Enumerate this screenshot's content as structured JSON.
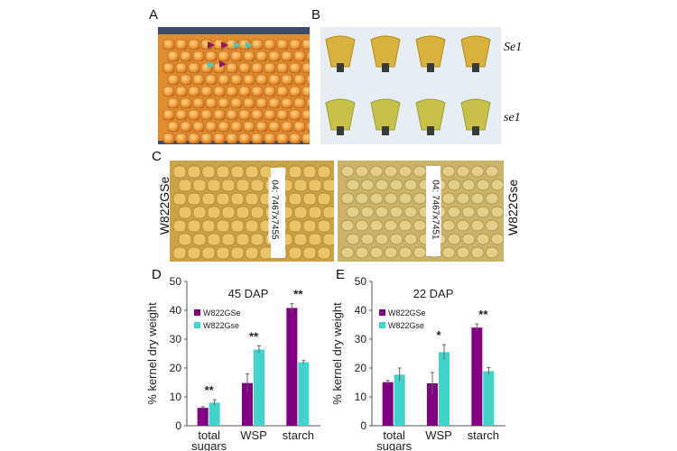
{
  "panels": {
    "A": {
      "label": "A"
    },
    "B": {
      "label": "B",
      "genotypes": [
        "Se1",
        "se1"
      ]
    },
    "C": {
      "label": "C",
      "left_genotype": "W822GSe",
      "right_genotype": "W822Gse",
      "left_tag": "04: 7467x7455",
      "right_tag": "04: 7467x7451"
    },
    "D": {
      "label": "D"
    },
    "E": {
      "label": "E"
    }
  },
  "chart_data": [
    {
      "type": "bar",
      "title": "45 DAP",
      "ylabel": "% kernel dry weight",
      "xlabel": "",
      "ylim": [
        0,
        50
      ],
      "yticks": [
        0,
        10,
        20,
        30,
        40,
        50
      ],
      "categories": [
        "total sugars",
        "WSP",
        "starch"
      ],
      "series": [
        {
          "name": "W822GSe",
          "color": "#800080",
          "values": [
            6.2,
            14.8,
            40.8
          ],
          "errors": [
            0.4,
            3.2,
            1.5
          ]
        },
        {
          "name": "W822Gse",
          "color": "#40d4cc",
          "values": [
            8.0,
            26.4,
            22.0
          ],
          "errors": [
            1.0,
            1.3,
            0.6
          ]
        }
      ],
      "significance": [
        "**",
        "**",
        "**"
      ],
      "legend": "top-left"
    },
    {
      "type": "bar",
      "title": "22 DAP",
      "ylabel": "% kernel dry weight",
      "xlabel": "",
      "ylim": [
        0,
        50
      ],
      "yticks": [
        0,
        10,
        20,
        30,
        40,
        50
      ],
      "categories": [
        "total sugars",
        "WSP",
        "starch"
      ],
      "series": [
        {
          "name": "W822GSe",
          "color": "#800080",
          "values": [
            15.1,
            14.7,
            34.0
          ],
          "errors": [
            0.6,
            3.8,
            1.3
          ]
        },
        {
          "name": "W822Gse",
          "color": "#40d4cc",
          "values": [
            17.7,
            25.5,
            18.9
          ],
          "errors": [
            2.3,
            2.6,
            1.3
          ]
        }
      ],
      "significance": [
        "",
        "*",
        "**"
      ],
      "legend": "top-left"
    }
  ]
}
